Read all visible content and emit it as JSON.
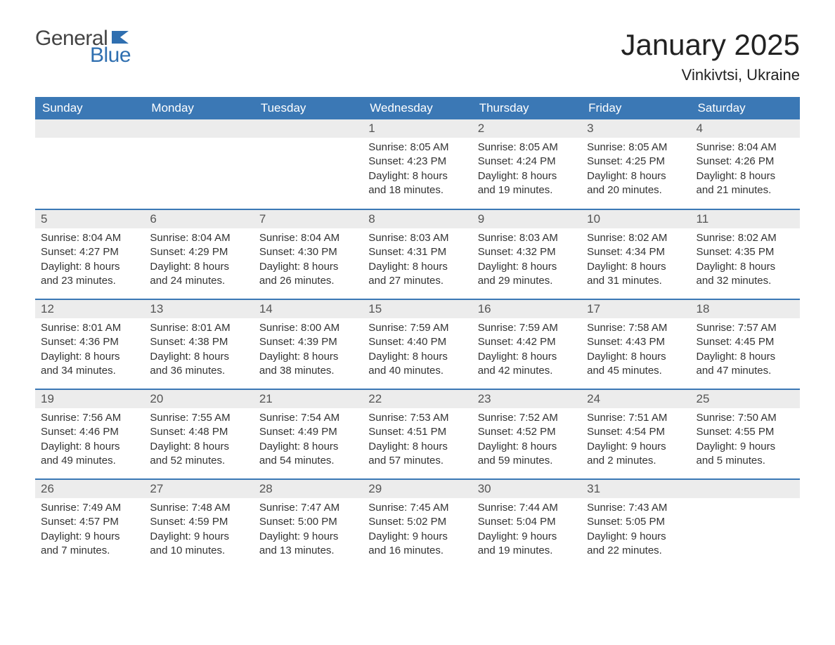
{
  "brand": {
    "word1": "General",
    "word2": "Blue",
    "text_color": "#444444",
    "accent_color": "#2f6fb0"
  },
  "title": "January 2025",
  "location": "Vinkivtsi, Ukraine",
  "colors": {
    "header_bg": "#3b78b5",
    "header_text": "#ffffff",
    "daynum_bg": "#ececec",
    "daynum_text": "#555555",
    "body_text": "#333333",
    "row_divider": "#3b78b5",
    "page_bg": "#ffffff"
  },
  "typography": {
    "title_fontsize_pt": 32,
    "location_fontsize_pt": 17,
    "header_fontsize_pt": 13,
    "daynum_fontsize_pt": 13,
    "body_fontsize_pt": 11,
    "font_family": "Arial"
  },
  "calendar": {
    "type": "table",
    "columns": [
      "Sunday",
      "Monday",
      "Tuesday",
      "Wednesday",
      "Thursday",
      "Friday",
      "Saturday"
    ],
    "weeks": [
      [
        null,
        null,
        null,
        {
          "day": "1",
          "sunrise": "Sunrise: 8:05 AM",
          "sunset": "Sunset: 4:23 PM",
          "daylight": "Daylight: 8 hours and 18 minutes."
        },
        {
          "day": "2",
          "sunrise": "Sunrise: 8:05 AM",
          "sunset": "Sunset: 4:24 PM",
          "daylight": "Daylight: 8 hours and 19 minutes."
        },
        {
          "day": "3",
          "sunrise": "Sunrise: 8:05 AM",
          "sunset": "Sunset: 4:25 PM",
          "daylight": "Daylight: 8 hours and 20 minutes."
        },
        {
          "day": "4",
          "sunrise": "Sunrise: 8:04 AM",
          "sunset": "Sunset: 4:26 PM",
          "daylight": "Daylight: 8 hours and 21 minutes."
        }
      ],
      [
        {
          "day": "5",
          "sunrise": "Sunrise: 8:04 AM",
          "sunset": "Sunset: 4:27 PM",
          "daylight": "Daylight: 8 hours and 23 minutes."
        },
        {
          "day": "6",
          "sunrise": "Sunrise: 8:04 AM",
          "sunset": "Sunset: 4:29 PM",
          "daylight": "Daylight: 8 hours and 24 minutes."
        },
        {
          "day": "7",
          "sunrise": "Sunrise: 8:04 AM",
          "sunset": "Sunset: 4:30 PM",
          "daylight": "Daylight: 8 hours and 26 minutes."
        },
        {
          "day": "8",
          "sunrise": "Sunrise: 8:03 AM",
          "sunset": "Sunset: 4:31 PM",
          "daylight": "Daylight: 8 hours and 27 minutes."
        },
        {
          "day": "9",
          "sunrise": "Sunrise: 8:03 AM",
          "sunset": "Sunset: 4:32 PM",
          "daylight": "Daylight: 8 hours and 29 minutes."
        },
        {
          "day": "10",
          "sunrise": "Sunrise: 8:02 AM",
          "sunset": "Sunset: 4:34 PM",
          "daylight": "Daylight: 8 hours and 31 minutes."
        },
        {
          "day": "11",
          "sunrise": "Sunrise: 8:02 AM",
          "sunset": "Sunset: 4:35 PM",
          "daylight": "Daylight: 8 hours and 32 minutes."
        }
      ],
      [
        {
          "day": "12",
          "sunrise": "Sunrise: 8:01 AM",
          "sunset": "Sunset: 4:36 PM",
          "daylight": "Daylight: 8 hours and 34 minutes."
        },
        {
          "day": "13",
          "sunrise": "Sunrise: 8:01 AM",
          "sunset": "Sunset: 4:38 PM",
          "daylight": "Daylight: 8 hours and 36 minutes."
        },
        {
          "day": "14",
          "sunrise": "Sunrise: 8:00 AM",
          "sunset": "Sunset: 4:39 PM",
          "daylight": "Daylight: 8 hours and 38 minutes."
        },
        {
          "day": "15",
          "sunrise": "Sunrise: 7:59 AM",
          "sunset": "Sunset: 4:40 PM",
          "daylight": "Daylight: 8 hours and 40 minutes."
        },
        {
          "day": "16",
          "sunrise": "Sunrise: 7:59 AM",
          "sunset": "Sunset: 4:42 PM",
          "daylight": "Daylight: 8 hours and 42 minutes."
        },
        {
          "day": "17",
          "sunrise": "Sunrise: 7:58 AM",
          "sunset": "Sunset: 4:43 PM",
          "daylight": "Daylight: 8 hours and 45 minutes."
        },
        {
          "day": "18",
          "sunrise": "Sunrise: 7:57 AM",
          "sunset": "Sunset: 4:45 PM",
          "daylight": "Daylight: 8 hours and 47 minutes."
        }
      ],
      [
        {
          "day": "19",
          "sunrise": "Sunrise: 7:56 AM",
          "sunset": "Sunset: 4:46 PM",
          "daylight": "Daylight: 8 hours and 49 minutes."
        },
        {
          "day": "20",
          "sunrise": "Sunrise: 7:55 AM",
          "sunset": "Sunset: 4:48 PM",
          "daylight": "Daylight: 8 hours and 52 minutes."
        },
        {
          "day": "21",
          "sunrise": "Sunrise: 7:54 AM",
          "sunset": "Sunset: 4:49 PM",
          "daylight": "Daylight: 8 hours and 54 minutes."
        },
        {
          "day": "22",
          "sunrise": "Sunrise: 7:53 AM",
          "sunset": "Sunset: 4:51 PM",
          "daylight": "Daylight: 8 hours and 57 minutes."
        },
        {
          "day": "23",
          "sunrise": "Sunrise: 7:52 AM",
          "sunset": "Sunset: 4:52 PM",
          "daylight": "Daylight: 8 hours and 59 minutes."
        },
        {
          "day": "24",
          "sunrise": "Sunrise: 7:51 AM",
          "sunset": "Sunset: 4:54 PM",
          "daylight": "Daylight: 9 hours and 2 minutes."
        },
        {
          "day": "25",
          "sunrise": "Sunrise: 7:50 AM",
          "sunset": "Sunset: 4:55 PM",
          "daylight": "Daylight: 9 hours and 5 minutes."
        }
      ],
      [
        {
          "day": "26",
          "sunrise": "Sunrise: 7:49 AM",
          "sunset": "Sunset: 4:57 PM",
          "daylight": "Daylight: 9 hours and 7 minutes."
        },
        {
          "day": "27",
          "sunrise": "Sunrise: 7:48 AM",
          "sunset": "Sunset: 4:59 PM",
          "daylight": "Daylight: 9 hours and 10 minutes."
        },
        {
          "day": "28",
          "sunrise": "Sunrise: 7:47 AM",
          "sunset": "Sunset: 5:00 PM",
          "daylight": "Daylight: 9 hours and 13 minutes."
        },
        {
          "day": "29",
          "sunrise": "Sunrise: 7:45 AM",
          "sunset": "Sunset: 5:02 PM",
          "daylight": "Daylight: 9 hours and 16 minutes."
        },
        {
          "day": "30",
          "sunrise": "Sunrise: 7:44 AM",
          "sunset": "Sunset: 5:04 PM",
          "daylight": "Daylight: 9 hours and 19 minutes."
        },
        {
          "day": "31",
          "sunrise": "Sunrise: 7:43 AM",
          "sunset": "Sunset: 5:05 PM",
          "daylight": "Daylight: 9 hours and 22 minutes."
        },
        null
      ]
    ]
  }
}
